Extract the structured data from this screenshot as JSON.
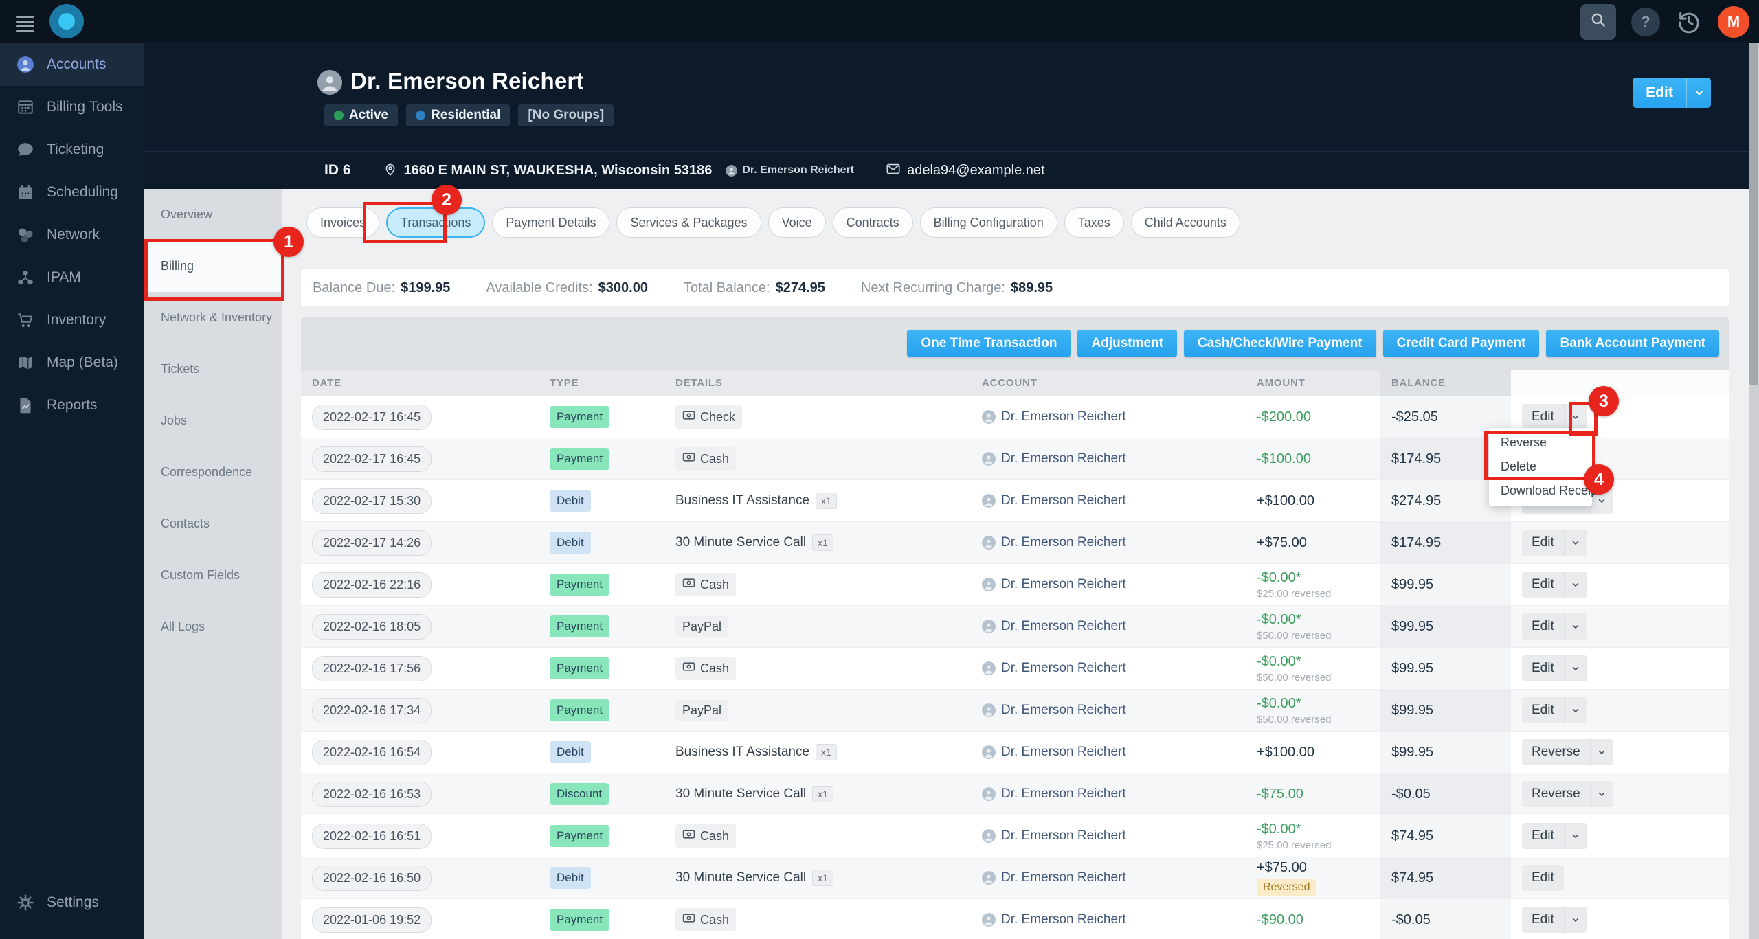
{
  "topbar": {
    "avatar_initial": "M",
    "icons": [
      "menu-icon",
      "app-logo",
      "search-icon",
      "help-icon",
      "history-icon"
    ]
  },
  "sidebar": {
    "items": [
      {
        "icon": "person-icon",
        "label": "Accounts",
        "active": true
      },
      {
        "icon": "abacus-icon",
        "label": "Billing Tools",
        "active": false
      },
      {
        "icon": "chat-icon",
        "label": "Ticketing",
        "active": false
      },
      {
        "icon": "calendar-icon",
        "label": "Scheduling",
        "active": false
      },
      {
        "icon": "hexagons-icon",
        "label": "Network",
        "active": false
      },
      {
        "icon": "nodes-icon",
        "label": "IPAM",
        "active": false
      },
      {
        "icon": "cart-icon",
        "label": "Inventory",
        "active": false
      },
      {
        "icon": "map-icon",
        "label": "Map (Beta)",
        "active": false
      },
      {
        "icon": "report-icon",
        "label": "Reports",
        "active": false
      }
    ],
    "settings_label": "Settings"
  },
  "header": {
    "name": "Dr. Emerson Reichert",
    "badges": [
      {
        "label": "Active",
        "dot": "#2e9e5b"
      },
      {
        "label": "Residential",
        "dot": "#2f7fc1"
      },
      {
        "label": "[No Groups]",
        "dot": null
      }
    ],
    "edit_label": "Edit",
    "id_label": "ID 6",
    "address": "1660 E MAIN ST, WAUKESHA, Wisconsin 53186",
    "address_owner": "Dr. Emerson Reichert",
    "email": "adela94@example.net"
  },
  "subnav": {
    "items": [
      "Overview",
      "Billing",
      "Network & Inventory",
      "Tickets",
      "Jobs",
      "Correspondence",
      "Contacts",
      "Custom Fields",
      "All Logs"
    ],
    "selected": "Billing"
  },
  "tabs": {
    "items": [
      "Invoices",
      "Transactions",
      "Payment Details",
      "Services & Packages",
      "Voice",
      "Contracts",
      "Billing Configuration",
      "Taxes",
      "Child Accounts"
    ],
    "selected": "Transactions"
  },
  "summary": [
    {
      "label": "Balance Due:",
      "value": "$199.95"
    },
    {
      "label": "Available Credits:",
      "value": "$300.00"
    },
    {
      "label": "Total Balance:",
      "value": "$274.95"
    },
    {
      "label": "Next Recurring Charge:",
      "value": "$89.95"
    }
  ],
  "action_buttons": [
    "One Time Transaction",
    "Adjustment",
    "Cash/Check/Wire Payment",
    "Credit Card Payment",
    "Bank Account Payment"
  ],
  "table": {
    "columns": [
      "DATE",
      "TYPE",
      "DETAILS",
      "ACCOUNT",
      "AMOUNT",
      "BALANCE",
      ""
    ],
    "reversed_badge_label": "Reversed",
    "rows": [
      {
        "date": "2022-02-17 16:45",
        "type": "Payment",
        "type_class": "payment",
        "detail": "Check",
        "detail_pill": true,
        "detail_icon": true,
        "qty": null,
        "account": "Dr. Emerson Reichert",
        "amount": "-$200.00",
        "amount_class": "neg",
        "amount_note": null,
        "reversed": false,
        "balance": "-$25.05",
        "action": "Edit",
        "chevron": true
      },
      {
        "date": "2022-02-17 16:45",
        "type": "Payment",
        "type_class": "payment",
        "detail": "Cash",
        "detail_pill": true,
        "detail_icon": true,
        "qty": null,
        "account": "Dr. Emerson Reichert",
        "amount": "-$100.00",
        "amount_class": "neg",
        "amount_note": null,
        "reversed": false,
        "balance": "$174.95",
        "action": "Edit",
        "chevron": true
      },
      {
        "date": "2022-02-17 15:30",
        "type": "Debit",
        "type_class": "debit",
        "detail": "Business IT Assistance",
        "detail_pill": false,
        "detail_icon": false,
        "qty": "x1",
        "account": "Dr. Emerson Reichert",
        "amount": "+$100.00",
        "amount_class": "pos",
        "amount_note": null,
        "reversed": false,
        "balance": "$274.95",
        "action": "Reverse",
        "chevron": true
      },
      {
        "date": "2022-02-17 14:26",
        "type": "Debit",
        "type_class": "debit",
        "detail": "30 Minute Service Call",
        "detail_pill": false,
        "detail_icon": false,
        "qty": "x1",
        "account": "Dr. Emerson Reichert",
        "amount": "+$75.00",
        "amount_class": "pos",
        "amount_note": null,
        "reversed": false,
        "balance": "$174.95",
        "action": "Edit",
        "chevron": true
      },
      {
        "date": "2022-02-16 22:16",
        "type": "Payment",
        "type_class": "payment",
        "detail": "Cash",
        "detail_pill": true,
        "detail_icon": true,
        "qty": null,
        "account": "Dr. Emerson Reichert",
        "amount": "-$0.00*",
        "amount_class": "neg",
        "amount_note": "$25.00 reversed",
        "reversed": false,
        "balance": "$99.95",
        "action": "Edit",
        "chevron": true
      },
      {
        "date": "2022-02-16 18:05",
        "type": "Payment",
        "type_class": "payment",
        "detail": "PayPal",
        "detail_pill": true,
        "detail_icon": false,
        "qty": null,
        "account": "Dr. Emerson Reichert",
        "amount": "-$0.00*",
        "amount_class": "neg",
        "amount_note": "$50.00 reversed",
        "reversed": false,
        "balance": "$99.95",
        "action": "Edit",
        "chevron": true
      },
      {
        "date": "2022-02-16 17:56",
        "type": "Payment",
        "type_class": "payment",
        "detail": "Cash",
        "detail_pill": true,
        "detail_icon": true,
        "qty": null,
        "account": "Dr. Emerson Reichert",
        "amount": "-$0.00*",
        "amount_class": "neg",
        "amount_note": "$50.00 reversed",
        "reversed": false,
        "balance": "$99.95",
        "action": "Edit",
        "chevron": true
      },
      {
        "date": "2022-02-16 17:34",
        "type": "Payment",
        "type_class": "payment",
        "detail": "PayPal",
        "detail_pill": true,
        "detail_icon": false,
        "qty": null,
        "account": "Dr. Emerson Reichert",
        "amount": "-$0.00*",
        "amount_class": "neg",
        "amount_note": "$50.00 reversed",
        "reversed": false,
        "balance": "$99.95",
        "action": "Edit",
        "chevron": true
      },
      {
        "date": "2022-02-16 16:54",
        "type": "Debit",
        "type_class": "debit",
        "detail": "Business IT Assistance",
        "detail_pill": false,
        "detail_icon": false,
        "qty": "x1",
        "account": "Dr. Emerson Reichert",
        "amount": "+$100.00",
        "amount_class": "pos",
        "amount_note": null,
        "reversed": false,
        "balance": "$99.95",
        "action": "Reverse",
        "chevron": true
      },
      {
        "date": "2022-02-16 16:53",
        "type": "Discount",
        "type_class": "discount",
        "detail": "30 Minute Service Call",
        "detail_pill": false,
        "detail_icon": false,
        "qty": "x1",
        "account": "Dr. Emerson Reichert",
        "amount": "-$75.00",
        "amount_class": "neg",
        "amount_note": null,
        "reversed": false,
        "balance": "-$0.05",
        "action": "Reverse",
        "chevron": true
      },
      {
        "date": "2022-02-16 16:51",
        "type": "Payment",
        "type_class": "payment",
        "detail": "Cash",
        "detail_pill": true,
        "detail_icon": true,
        "qty": null,
        "account": "Dr. Emerson Reichert",
        "amount": "-$0.00*",
        "amount_class": "neg",
        "amount_note": "$25.00 reversed",
        "reversed": false,
        "balance": "$74.95",
        "action": "Edit",
        "chevron": true
      },
      {
        "date": "2022-02-16 16:50",
        "type": "Debit",
        "type_class": "debit",
        "detail": "30 Minute Service Call",
        "detail_pill": false,
        "detail_icon": false,
        "qty": "x1",
        "account": "Dr. Emerson Reichert",
        "amount": "+$75.00",
        "amount_class": "pos",
        "amount_note": null,
        "reversed": true,
        "balance": "$74.95",
        "action": "Edit",
        "chevron": false
      },
      {
        "date": "2022-01-06 19:52",
        "type": "Payment",
        "type_class": "payment",
        "detail": "Cash",
        "detail_pill": true,
        "detail_icon": true,
        "qty": null,
        "account": "Dr. Emerson Reichert",
        "amount": "-$90.00",
        "amount_class": "neg",
        "amount_note": null,
        "reversed": false,
        "balance": "-$0.05",
        "action": "Edit",
        "chevron": true
      }
    ]
  },
  "dropdown": {
    "items": [
      "Reverse",
      "Delete",
      "Download Receipt"
    ]
  },
  "annotations": {
    "steps": [
      "1",
      "2",
      "3",
      "4"
    ],
    "color": "#e8251c"
  },
  "colors": {
    "accent_blue": "#2fa9f3",
    "payment_green": "#88e6ba",
    "debit_blue": "#cfe3f4",
    "amount_green": "#3f9e60",
    "reversed_yellow": "#faecc8",
    "annotation_red": "#e8251c",
    "avatar_orange": "#f1502a"
  }
}
